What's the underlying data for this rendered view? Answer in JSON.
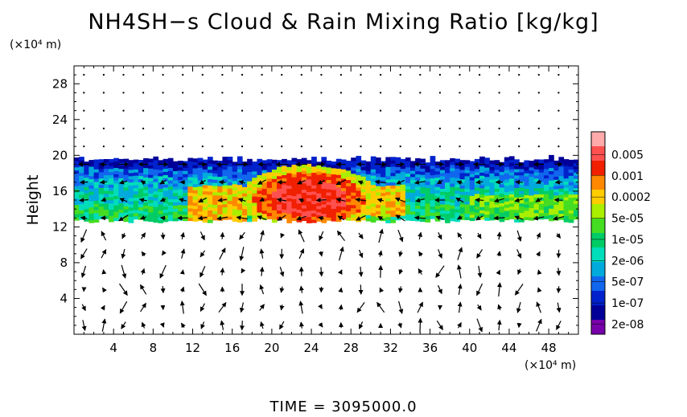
{
  "title": "NH4SH−s Cloud & Rain Mixing Ratio [kg/kg]",
  "footer": "TIME = 3095000.0",
  "chart_data": {
    "type": "heatmap",
    "title": "NH4SH−s Cloud & Rain Mixing Ratio [kg/kg]",
    "xlabel": "(×10⁴ m)",
    "ylabel": "Height",
    "y_unit_label": "(×10⁴ m)",
    "x_unit_label": "(×10⁴ m)",
    "xlim": [
      0,
      51
    ],
    "ylim": [
      0,
      30
    ],
    "x_ticks": [
      "4",
      "8",
      "12",
      "16",
      "20",
      "24",
      "28",
      "32",
      "36",
      "40",
      "44",
      "48"
    ],
    "y_ticks": [
      "4",
      "8",
      "12",
      "16",
      "20",
      "24",
      "28"
    ],
    "colorbar": {
      "labels": [
        "0.005",
        "0.001",
        "0.0002",
        "5e-05",
        "1e-05",
        "2e-06",
        "5e-07",
        "1e-07",
        "2e-08"
      ],
      "colors": [
        "#ffaaaa",
        "#ff5050",
        "#f02000",
        "#ff8800",
        "#ffcc00",
        "#aaee00",
        "#44dd22",
        "#00cc66",
        "#00ddbb",
        "#00aadd",
        "#1166ee",
        "#0022cc",
        "#000099",
        "#7700aa"
      ]
    },
    "cloud_layer": {
      "bottom": 12.7,
      "top": 19.4
    },
    "core_region": {
      "x_range": [
        17,
        30
      ],
      "y_range": [
        11.6,
        18.8
      ],
      "level": "0.001"
    },
    "secondary_regions": [
      {
        "x_range": [
          11.5,
          17
        ],
        "y_range": [
          12.5,
          16.5
        ],
        "level": "0.0002"
      },
      {
        "x_range": [
          30,
          33
        ],
        "y_range": [
          13,
          16.5
        ],
        "level": "0.0002"
      },
      {
        "x_range": [
          40,
          51
        ],
        "y_range": [
          12.8,
          15.5
        ],
        "level": "5e-05"
      }
    ]
  }
}
